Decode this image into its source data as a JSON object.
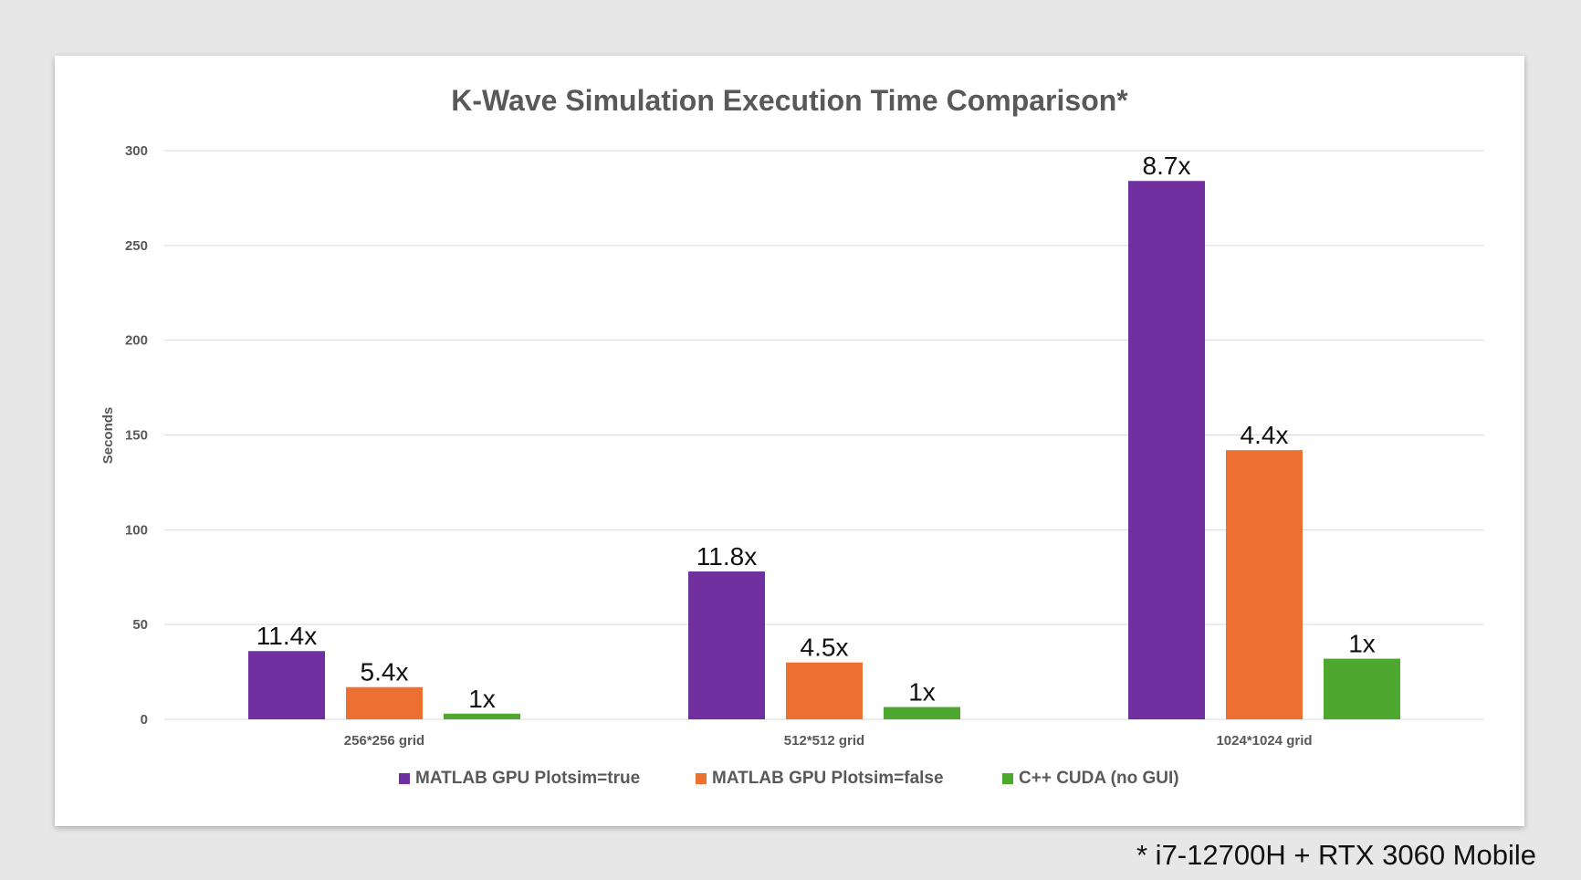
{
  "chart_data": {
    "type": "bar",
    "title": "K-Wave Simulation Execution Time Comparison*",
    "xlabel": "",
    "ylabel": "Seconds",
    "ylim": [
      0,
      300
    ],
    "yticks": [
      0,
      50,
      100,
      150,
      200,
      250,
      300
    ],
    "grid": true,
    "legend_position": "bottom",
    "categories": [
      "256*256 grid",
      "512*512 grid",
      "1024*1024 grid"
    ],
    "series": [
      {
        "name": "MATLAB GPU Plotsim=true",
        "color": "#7030a0",
        "values": [
          36,
          78,
          284
        ],
        "labels": [
          "11.4x",
          "11.8x",
          "8.7x"
        ]
      },
      {
        "name": "MATLAB GPU Plotsim=false",
        "color": "#ed7031",
        "values": [
          17,
          30,
          142
        ],
        "labels": [
          "5.4x",
          "4.5x",
          "4.4x"
        ]
      },
      {
        "name": "C++ CUDA (no GUI)",
        "color": "#4ea72e",
        "values": [
          3,
          6.5,
          32
        ],
        "labels": [
          "1x",
          "1x",
          "1x"
        ]
      }
    ]
  },
  "footnote": "* i7-12700H + RTX 3060 Mobile",
  "colors": {
    "background": "#e7e7e7",
    "card": "#ffffff",
    "title": "#595959",
    "axis_text": "#595959",
    "gridline": "#d9d9d9"
  }
}
